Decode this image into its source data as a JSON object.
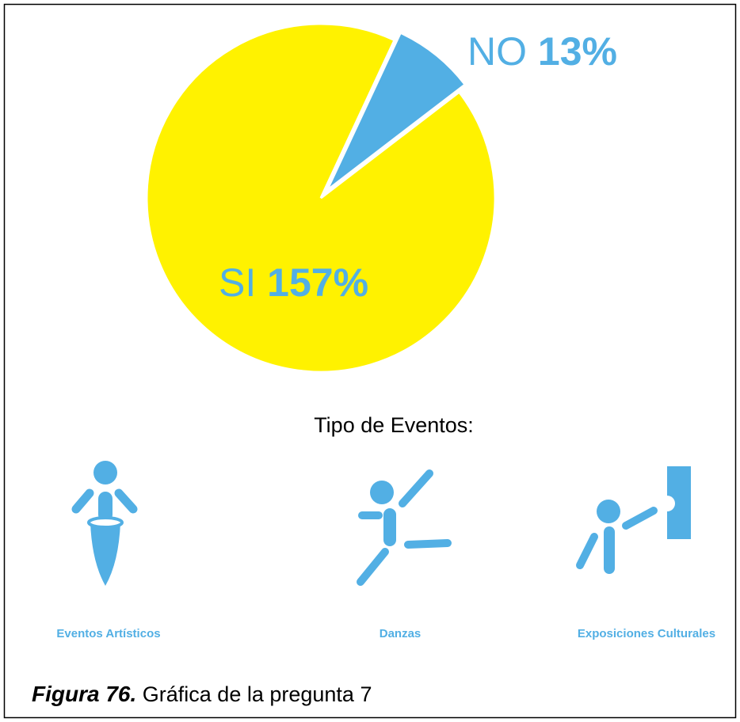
{
  "chart_data": {
    "type": "pie",
    "categories": [
      "NO",
      "SI"
    ],
    "values": [
      13,
      157
    ],
    "value_labels": [
      "13%",
      "157%"
    ],
    "colors": [
      "#52afe4",
      "#fff200"
    ]
  },
  "events": {
    "title": "Tipo de Eventos:",
    "items": [
      "Eventos Artísticos",
      "Danzas",
      "Exposiciones Culturales"
    ]
  },
  "caption": {
    "label": "Figura 76.",
    "text": "Gráfica de la pregunta 7"
  }
}
